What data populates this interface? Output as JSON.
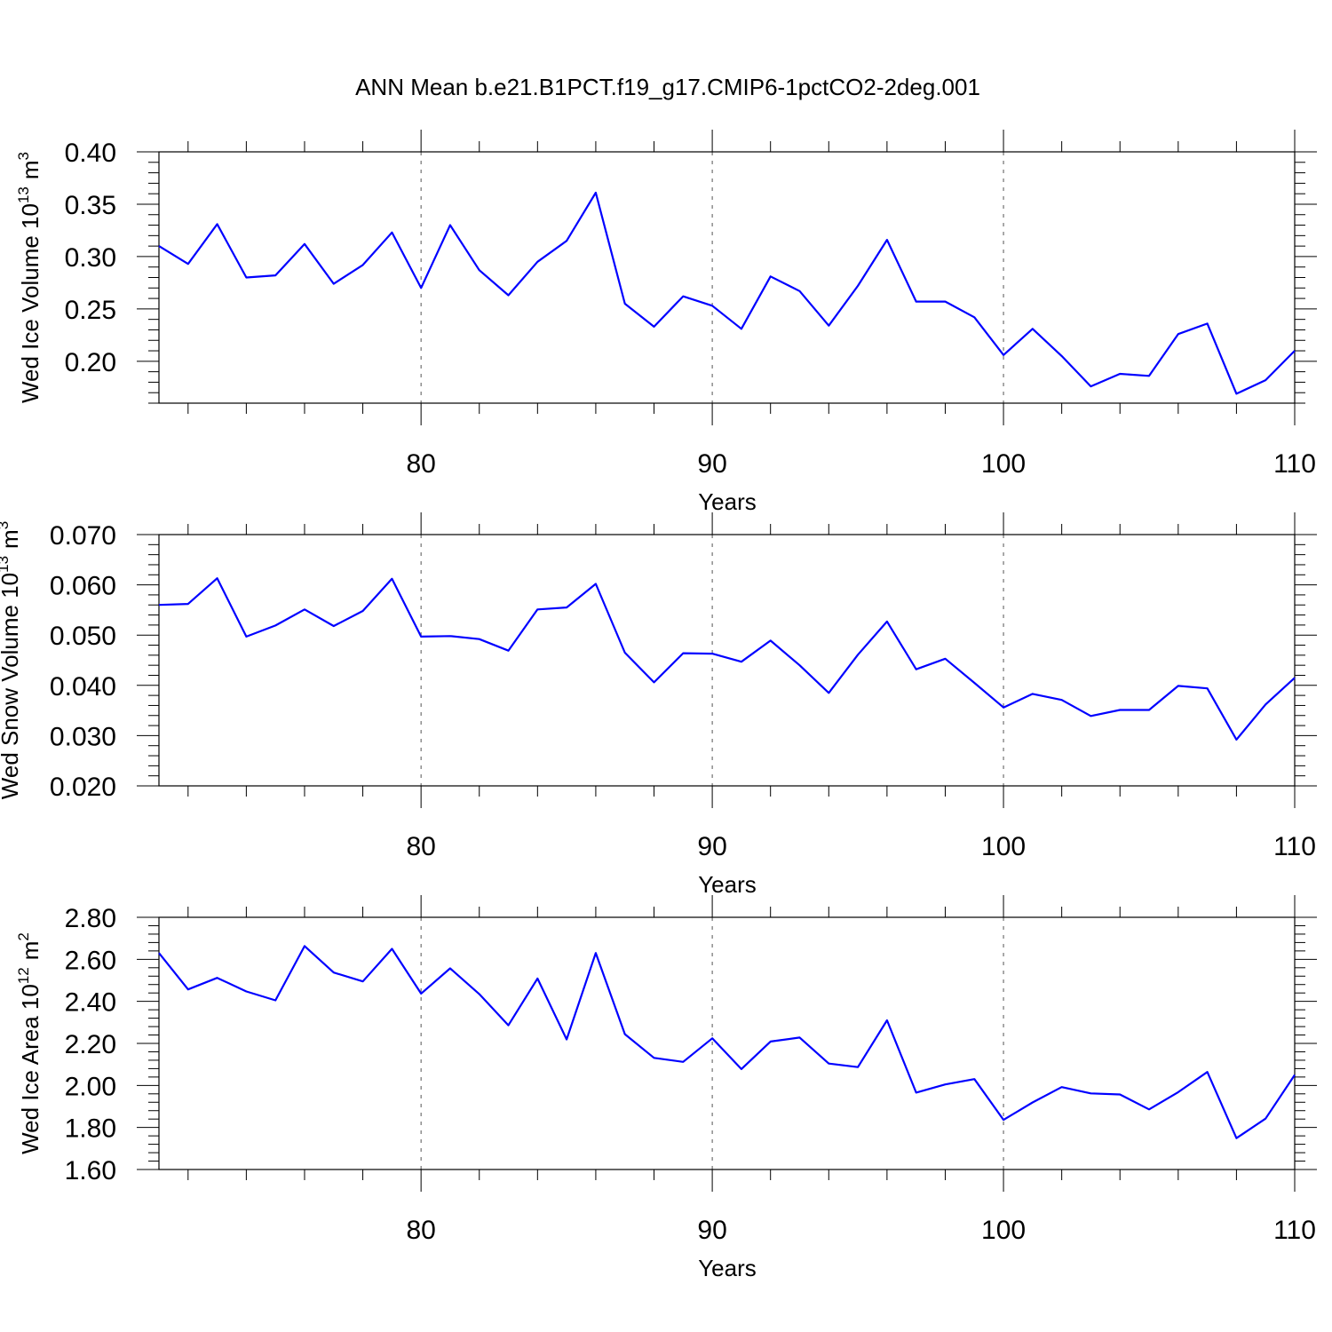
{
  "title": "ANN Mean b.e21.B1PCT.f19_g17.CMIP6-1pctCO2-2deg.001",
  "line_color": "#0000ff",
  "chart_data": [
    {
      "type": "line",
      "xlabel": "Years",
      "ylabel": "Wed Ice Volume 10",
      "ylabel_exp": "13",
      "ylabel_unit": "m",
      "ylabel_unit_exp": "3",
      "xlim": [
        71,
        110
      ],
      "ylim": [
        0.16,
        0.4
      ],
      "xticks": [
        "80",
        "90",
        "100",
        "110"
      ],
      "yticks": [
        "0.40",
        "0.35",
        "0.30",
        "0.25",
        "0.20"
      ],
      "grid_x": [
        80,
        90,
        100
      ],
      "x": [
        71,
        72,
        73,
        74,
        75,
        76,
        77,
        78,
        79,
        80,
        81,
        82,
        83,
        84,
        85,
        86,
        87,
        88,
        89,
        90,
        91,
        92,
        93,
        94,
        95,
        96,
        97,
        98,
        99,
        100,
        101,
        102,
        103,
        104,
        105,
        106,
        107,
        108,
        109,
        110
      ],
      "values": [
        0.31,
        0.293,
        0.331,
        0.28,
        0.282,
        0.312,
        0.274,
        0.292,
        0.323,
        0.27,
        0.33,
        0.287,
        0.263,
        0.295,
        0.315,
        0.361,
        0.255,
        0.233,
        0.262,
        0.253,
        0.231,
        0.281,
        0.267,
        0.234,
        0.272,
        0.316,
        0.257,
        0.257,
        0.242,
        0.206,
        0.231,
        0.205,
        0.176,
        0.188,
        0.186,
        0.226,
        0.236,
        0.169,
        0.182,
        0.21
      ]
    },
    {
      "type": "line",
      "xlabel": "Years",
      "ylabel": "Wed Snow Volume 10",
      "ylabel_exp": "13",
      "ylabel_unit": "m",
      "ylabel_unit_exp": "3",
      "xlim": [
        71,
        110
      ],
      "ylim": [
        0.02,
        0.07
      ],
      "xticks": [
        "80",
        "90",
        "100",
        "110"
      ],
      "yticks": [
        "0.070",
        "0.060",
        "0.050",
        "0.040",
        "0.030",
        "0.020"
      ],
      "grid_x": [
        80,
        90,
        100
      ],
      "x": [
        71,
        72,
        73,
        74,
        75,
        76,
        77,
        78,
        79,
        80,
        81,
        82,
        83,
        84,
        85,
        86,
        87,
        88,
        89,
        90,
        91,
        92,
        93,
        94,
        95,
        96,
        97,
        98,
        99,
        100,
        101,
        102,
        103,
        104,
        105,
        106,
        107,
        108,
        109,
        110
      ],
      "values": [
        0.056,
        0.0562,
        0.0613,
        0.0497,
        0.0519,
        0.0551,
        0.0518,
        0.0548,
        0.0612,
        0.0497,
        0.0498,
        0.0492,
        0.0469,
        0.0551,
        0.0555,
        0.0602,
        0.0465,
        0.0406,
        0.0464,
        0.0463,
        0.0447,
        0.0489,
        0.044,
        0.0385,
        0.0461,
        0.0527,
        0.0432,
        0.0453,
        0.0405,
        0.0356,
        0.0383,
        0.0371,
        0.0339,
        0.0351,
        0.0351,
        0.0399,
        0.0394,
        0.0292,
        0.0362,
        0.0415
      ]
    },
    {
      "type": "line",
      "xlabel": "Years",
      "ylabel": "Wed Ice Area 10",
      "ylabel_exp": "12",
      "ylabel_unit": "m",
      "ylabel_unit_exp": "2",
      "xlim": [
        71,
        110
      ],
      "ylim": [
        1.6,
        2.8
      ],
      "xticks": [
        "80",
        "90",
        "100",
        "110"
      ],
      "yticks": [
        "2.80",
        "2.60",
        "2.40",
        "2.20",
        "2.00",
        "1.80",
        "1.60"
      ],
      "grid_x": [
        80,
        90,
        100
      ],
      "x": [
        71,
        72,
        73,
        74,
        75,
        76,
        77,
        78,
        79,
        80,
        81,
        82,
        83,
        84,
        85,
        86,
        87,
        88,
        89,
        90,
        91,
        92,
        93,
        94,
        95,
        96,
        97,
        98,
        99,
        100,
        101,
        102,
        103,
        104,
        105,
        106,
        107,
        108,
        109,
        110
      ],
      "values": [
        2.63,
        2.457,
        2.512,
        2.447,
        2.405,
        2.663,
        2.537,
        2.495,
        2.65,
        2.437,
        2.557,
        2.435,
        2.286,
        2.509,
        2.219,
        2.63,
        2.244,
        2.131,
        2.112,
        2.224,
        2.078,
        2.209,
        2.228,
        2.104,
        2.087,
        2.31,
        1.966,
        2.005,
        2.03,
        1.836,
        1.919,
        1.992,
        1.962,
        1.957,
        1.886,
        1.968,
        2.064,
        1.749,
        1.842,
        2.05
      ]
    }
  ]
}
